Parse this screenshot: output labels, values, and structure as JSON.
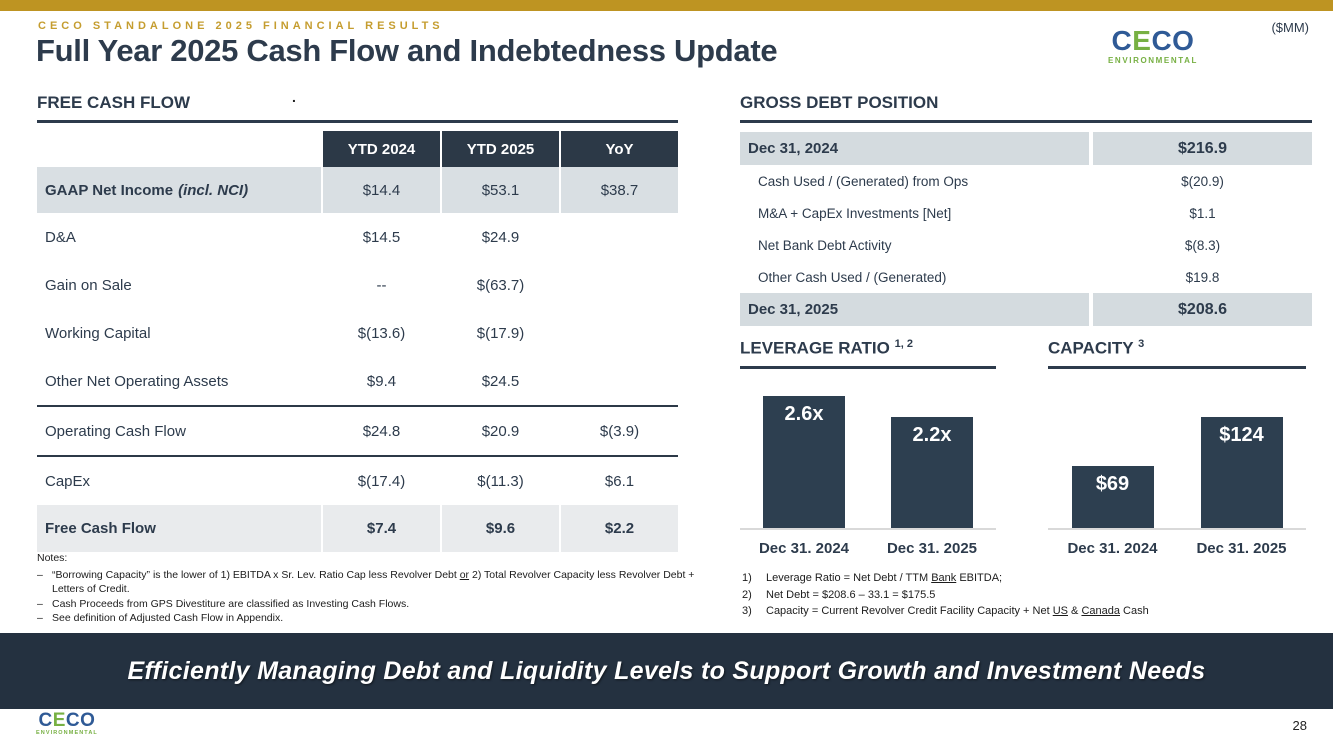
{
  "meta": {
    "units": "($MM)",
    "page_number": "28"
  },
  "header": {
    "eyebrow": "CECO STANDALONE 2025 FINANCIAL RESULTS",
    "title": "Full Year 2025 Cash Flow and Indebtedness Update",
    "stray_dot": "."
  },
  "logo": {
    "l1": "C",
    "l2": "E",
    "l3": "C",
    "l4": "O",
    "sub": "ENVIRONMENTAL"
  },
  "free_cash_flow": {
    "heading": "FREE CASH FLOW",
    "columns": [
      "YTD 2024",
      "YTD 2025",
      "YoY"
    ],
    "rows": [
      {
        "label": "GAAP Net Income",
        "label_italic": "(incl. NCI)",
        "v1": "$14.4",
        "v2": "$53.1",
        "v3": "$38.7"
      },
      {
        "label": "D&A",
        "v1": "$14.5",
        "v2": "$24.9",
        "v3": ""
      },
      {
        "label": "Gain on Sale",
        "v1": "--",
        "v2": "$(63.7)",
        "v3": ""
      },
      {
        "label": "Working Capital",
        "v1": "$(13.6)",
        "v2": "$(17.9)",
        "v3": ""
      },
      {
        "label": "Other Net Operating Assets",
        "v1": "$9.4",
        "v2": "$24.5",
        "v3": ""
      },
      {
        "label": "Operating Cash Flow",
        "v1": "$24.8",
        "v2": "$20.9",
        "v3": "$(3.9)"
      },
      {
        "label": "CapEx",
        "v1": "$(17.4)",
        "v2": "$(11.3)",
        "v3": "$6.1"
      },
      {
        "label": "Free Cash Flow",
        "v1": "$7.4",
        "v2": "$9.6",
        "v3": "$2.2"
      }
    ]
  },
  "notes": {
    "label": "Notes:",
    "bullet": "–",
    "items": [
      {
        "pre": "“Borrowing Capacity” is the lower of 1) EBITDA x Sr. Lev. Ratio Cap less Revolver Debt ",
        "u": "or",
        "post": " 2) Total Revolver Capacity less Revolver Debt + Letters of Credit."
      },
      {
        "pre": "Cash Proceeds from GPS Divestiture are classified as Investing Cash Flows."
      },
      {
        "pre": "See definition of Adjusted Cash Flow in Appendix."
      }
    ]
  },
  "gross_debt": {
    "heading": "GROSS DEBT POSITION",
    "rows": [
      {
        "label": "Dec 31, 2024",
        "value": "$216.9",
        "type": "total"
      },
      {
        "label": "Cash Used / (Generated) from Ops",
        "value": "$(20.9)",
        "type": "detail"
      },
      {
        "label": "M&A + CapEx Investments [Net]",
        "value": "$1.1",
        "type": "detail"
      },
      {
        "label": "Net Bank Debt Activity",
        "value": "$(8.3)",
        "type": "detail"
      },
      {
        "label": "Other Cash Used / (Generated)",
        "value": "$19.8",
        "type": "detail"
      },
      {
        "label": "Dec 31, 2025",
        "value": "$208.6",
        "type": "total"
      }
    ]
  },
  "chart_data": [
    {
      "type": "bar",
      "title": "LEVERAGE RATIO",
      "title_sup": "1, 2",
      "categories": [
        "Dec 31. 2024",
        "Dec 31. 2025"
      ],
      "values": [
        2.6,
        2.2
      ],
      "labels": [
        "2.6x",
        "2.2x"
      ],
      "ylim": [
        0,
        3.0
      ],
      "bar_color": "#2d3f50",
      "unit": "x (Net Debt / TTM Bank EBITDA)",
      "grid": false,
      "legend": "none"
    },
    {
      "type": "bar",
      "title": "CAPACITY",
      "title_sup": "3",
      "categories": [
        "Dec 31. 2024",
        "Dec 31. 2025"
      ],
      "values": [
        69,
        124
      ],
      "labels": [
        "$69",
        "$124"
      ],
      "ylim": [
        0,
        170
      ],
      "bar_color": "#2d3f50",
      "unit": "$MM",
      "grid": false,
      "legend": "none"
    }
  ],
  "footnotes": [
    {
      "num": "1)",
      "pre": "Leverage Ratio = Net Debt / TTM ",
      "u": "Bank",
      "post": " EBITDA;"
    },
    {
      "num": "2)",
      "pre": "Net Debt = $208.6 – 33.1 = $175.5"
    },
    {
      "num": "3)",
      "pre": "Capacity = Current Revolver Credit Facility Capacity + Net ",
      "u": "US",
      "mid": " & ",
      "u2": "Canada",
      "post": " Cash"
    }
  ],
  "banner": {
    "text": "Efficiently Managing Debt and Liquidity Levels to Support Growth and Investment Needs"
  },
  "footer": {
    "page": "28"
  }
}
